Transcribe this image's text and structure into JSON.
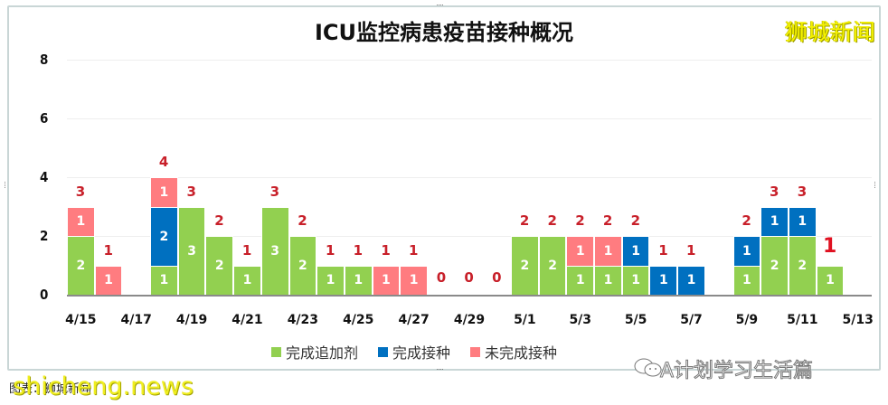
{
  "chart_data": {
    "type": "bar",
    "stacked": true,
    "title": "ICU监控病患疫苗接种概况",
    "xlabel": "",
    "ylabel": "",
    "ylim": [
      0,
      8
    ],
    "yticks": [
      0,
      2,
      4,
      6,
      8
    ],
    "grid": true,
    "legend_position": "bottom",
    "categories": [
      "4/15",
      "4/16",
      "4/17",
      "4/18",
      "4/19",
      "4/20",
      "4/21",
      "4/22",
      "4/23",
      "4/24",
      "4/25",
      "4/26",
      "4/27",
      "4/28",
      "4/29",
      "4/30",
      "5/1",
      "5/2",
      "5/3",
      "5/4",
      "5/5",
      "5/6",
      "5/7",
      "5/8",
      "5/9",
      "5/10",
      "5/11",
      "5/12",
      "5/13"
    ],
    "xtick_labels": [
      "4/15",
      "4/17",
      "4/19",
      "4/21",
      "4/23",
      "4/25",
      "4/27",
      "4/29",
      "5/1",
      "5/3",
      "5/5",
      "5/7",
      "5/9",
      "5/11",
      "5/13"
    ],
    "series": [
      {
        "name": "完成追加剂",
        "color": "#92d050",
        "values": [
          2,
          0,
          0,
          1,
          3,
          2,
          1,
          3,
          2,
          1,
          1,
          0,
          0,
          0,
          0,
          0,
          2,
          2,
          1,
          1,
          1,
          0,
          0,
          0,
          1,
          2,
          2,
          1,
          0
        ]
      },
      {
        "name": "完成接种",
        "color": "#0070c0",
        "values": [
          0,
          0,
          0,
          2,
          0,
          0,
          0,
          0,
          0,
          0,
          0,
          0,
          0,
          0,
          0,
          0,
          0,
          0,
          0,
          0,
          1,
          1,
          1,
          0,
          1,
          1,
          1,
          0,
          0
        ]
      },
      {
        "name": "未完成接种",
        "color": "#ff7c80",
        "values": [
          1,
          1,
          0,
          1,
          0,
          0,
          0,
          0,
          0,
          0,
          0,
          1,
          1,
          0,
          0,
          0,
          0,
          0,
          1,
          1,
          0,
          0,
          0,
          0,
          0,
          0,
          0,
          0,
          0
        ]
      }
    ],
    "totals": [
      3,
      1,
      null,
      4,
      3,
      2,
      1,
      3,
      2,
      1,
      1,
      1,
      1,
      0,
      0,
      0,
      2,
      2,
      2,
      2,
      2,
      1,
      1,
      null,
      2,
      3,
      3,
      1,
      null
    ]
  },
  "header": {
    "title": "ICU监控病患疫苗接种概况",
    "brand": "狮城新闻"
  },
  "legend": {
    "items": [
      {
        "label": "完成追加剂",
        "color": "#92d050"
      },
      {
        "label": "完成接种",
        "color": "#0070c0"
      },
      {
        "label": "未完成接种",
        "color": "#ff7c80"
      }
    ]
  },
  "footer": {
    "wechat_account": "A计划学习生活篇",
    "source_text": "图表：狮城新闻",
    "site_watermark": "shicheng.news"
  },
  "colors": {
    "total_label": "#c8202a",
    "axis": "#8a8a8a",
    "frame": "#c9d6d6"
  }
}
